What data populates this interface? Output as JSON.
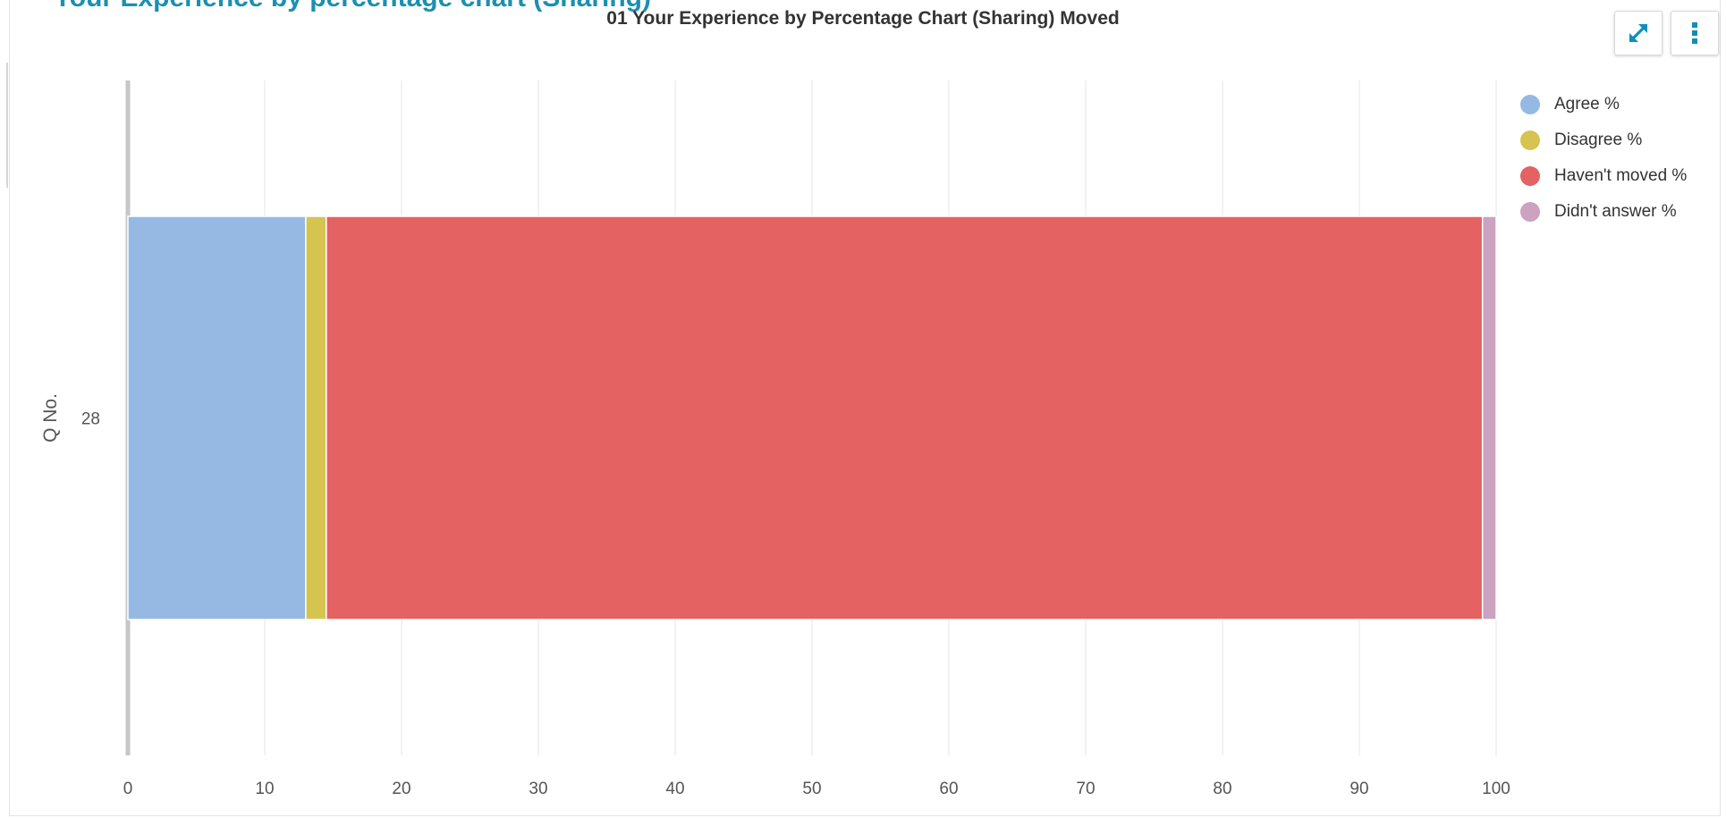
{
  "header": {
    "clipped_heading": "Your Experience by percentage chart (Sharing)",
    "expand_icon": "expand-icon",
    "more_icon": "more-vertical-icon"
  },
  "colors": {
    "accent": "#0e8fb8",
    "gridline": "#e6e6e6",
    "axis": "#c6c6c6"
  },
  "chart_data": {
    "type": "bar",
    "orientation": "horizontal",
    "stacked": true,
    "title": "01 Your Experience by Percentage Chart (Sharing) Moved",
    "xlabel": "",
    "ylabel": "Q No.",
    "categories": [
      "28"
    ],
    "xlim": [
      0,
      100
    ],
    "xticks": [
      0,
      10,
      20,
      30,
      40,
      50,
      60,
      70,
      80,
      90,
      100
    ],
    "grid": true,
    "legend_position": "top-right",
    "series": [
      {
        "name": "Agree %",
        "color": "#95b9e2",
        "values": [
          13
        ]
      },
      {
        "name": "Disagree %",
        "color": "#d5c450",
        "values": [
          1.5
        ]
      },
      {
        "name": "Haven't moved %",
        "color": "#e46262",
        "values": [
          84.5
        ]
      },
      {
        "name": "Didn't answer %",
        "color": "#cba2bf",
        "values": [
          1
        ]
      }
    ]
  }
}
